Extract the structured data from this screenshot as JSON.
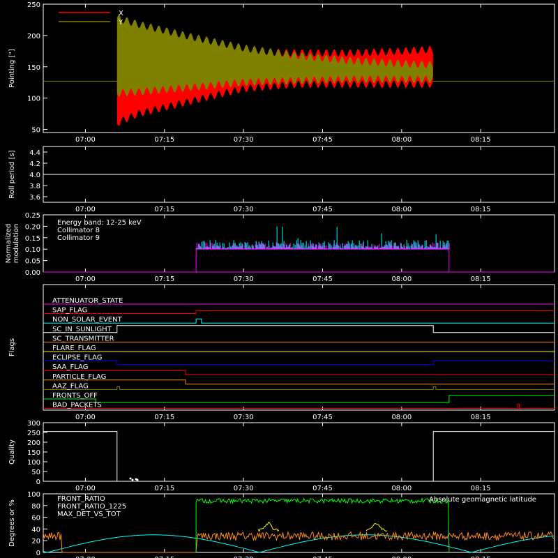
{
  "colors": {
    "x": "#ff0000",
    "y": "#808000",
    "white": "#ffffff",
    "cyan": "#00ffff",
    "magenta": "#ff00ff",
    "green": "#00ff00",
    "orange": "#ff8c1a",
    "yellow": "#ffff00",
    "blue": "#0000ff"
  },
  "x_ticks": [
    "07:00",
    "07:15",
    "07:30",
    "07:45",
    "08:00",
    "08:15"
  ],
  "chart_data": [
    {
      "type": "area",
      "ylabel": "Pointing [\"]",
      "ylim": [
        45,
        250
      ],
      "yticks": [
        "50",
        "100",
        "150",
        "200",
        "250"
      ],
      "legend": [
        "X",
        "Y"
      ],
      "series": [
        {
          "name": "X",
          "color_key": "x",
          "baseline": 127,
          "envelope_time": [
            "07:06",
            "07:10",
            "07:20",
            "07:30",
            "07:40",
            "07:50",
            "08:00",
            "08:06"
          ],
          "upper": [
            195,
            200,
            185,
            175,
            172,
            172,
            175,
            178
          ],
          "lower": [
            60,
            75,
            95,
            115,
            122,
            122,
            122,
            122
          ]
        },
        {
          "name": "Y",
          "color_key": "y",
          "baseline": 127,
          "envelope_time": [
            "07:06",
            "07:10",
            "07:20",
            "07:30",
            "07:40",
            "07:50",
            "08:00",
            "08:06"
          ],
          "upper": [
            228,
            218,
            198,
            180,
            168,
            160,
            155,
            153
          ],
          "lower": [
            108,
            110,
            117,
            125,
            128,
            130,
            130,
            130
          ]
        }
      ]
    },
    {
      "type": "line",
      "ylabel": "Roll period [s]",
      "ylim": [
        3.5,
        4.5
      ],
      "yticks": [
        "3.6",
        "3.8",
        "4.0",
        "4.2",
        "4.4"
      ],
      "series": [
        {
          "color_key": "white",
          "value": 4.0
        }
      ]
    },
    {
      "type": "line",
      "ylabel": "Normalized modulation",
      "ylim": [
        0,
        0.25
      ],
      "yticks": [
        "0.00",
        "0.05",
        "0.10",
        "0.15",
        "0.20",
        "0.25"
      ],
      "annotations": [
        "Energy band: 12-25 keV",
        "Collimator 8",
        "Collimator 9"
      ],
      "series": [
        {
          "name": "Collimator 8",
          "color_key": "cyan",
          "start": "07:21",
          "end": "08:09",
          "level": 0.105
        },
        {
          "name": "Collimator 9",
          "color_key": "magenta",
          "start": "07:21",
          "end": "08:09",
          "level": 0.1
        }
      ]
    },
    {
      "type": "line",
      "ylabel": "Flags",
      "flags": [
        {
          "name": "ATTENUATOR_STATE",
          "color_key": "magenta"
        },
        {
          "name": "SAP_FLAG",
          "color_key": "x"
        },
        {
          "name": "NON_SOLAR_EVENT",
          "color_key": "cyan"
        },
        {
          "name": "SC_IN_SUNLIGHT",
          "color_key": "white"
        },
        {
          "name": "SC_TRANSMITTER",
          "color_key": "orange"
        },
        {
          "name": "FLARE_FLAG",
          "color_key": "yellow"
        },
        {
          "name": "ECLIPSE_FLAG",
          "color_key": "blue"
        },
        {
          "name": "SAA_FLAG",
          "color_key": "x"
        },
        {
          "name": "PARTICLE_FLAG",
          "color_key": "orange"
        },
        {
          "name": "AAZ_FLAG",
          "color_key": "y"
        },
        {
          "name": "FRONTS_OFF",
          "color_key": "green"
        },
        {
          "name": "BAD_PACKETS",
          "color_key": "x"
        }
      ]
    },
    {
      "type": "line",
      "ylabel": "Quality",
      "ylim": [
        0,
        300
      ],
      "yticks": [
        "0",
        "50",
        "100",
        "150",
        "200",
        "250",
        "300"
      ],
      "series": [
        {
          "color_key": "white",
          "segments": [
            {
              "start": "06:52",
              "end": "07:06",
              "value": 255
            },
            {
              "start": "07:06",
              "end": "08:06",
              "value": 0
            },
            {
              "start": "08:06",
              "end": "08:29",
              "value": 255
            }
          ]
        }
      ]
    },
    {
      "type": "line",
      "ylabel": "Degrees or %",
      "ylim": [
        0,
        100
      ],
      "yticks": [
        "0",
        "20",
        "40",
        "60",
        "80",
        "100"
      ],
      "annotations": [
        "Absolute geomagnetic latitude"
      ],
      "series": [
        {
          "name": "FRONT_RATIO",
          "color_key": "yellow"
        },
        {
          "name": "FRONT_RATIO_1225",
          "color_key": "green",
          "start": "07:21",
          "end": "08:09",
          "level": 88
        },
        {
          "name": "MAX_DET_VS_TOT",
          "color_key": "orange",
          "level": 28
        }
      ]
    }
  ]
}
